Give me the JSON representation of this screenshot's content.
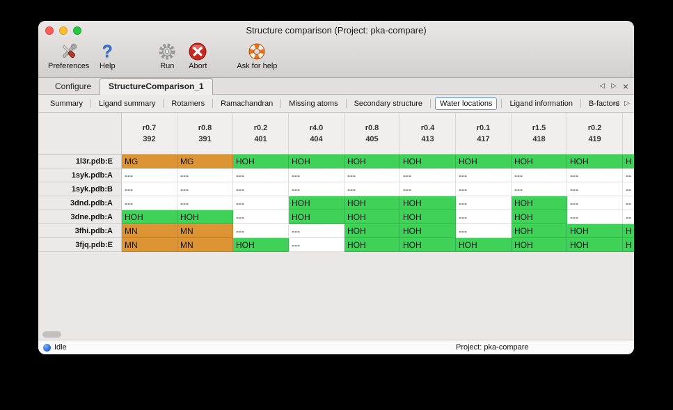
{
  "window": {
    "title": "Structure comparison (Project: pka-compare)"
  },
  "toolbar": {
    "items": [
      {
        "label": "Preferences",
        "icon": "tools-icon"
      },
      {
        "label": "Help",
        "icon": "question-icon"
      },
      {
        "label": "Run",
        "icon": "gear-icon"
      },
      {
        "label": "Abort",
        "icon": "abort-icon"
      },
      {
        "label": "Ask for help",
        "icon": "lifebuoy-icon"
      }
    ]
  },
  "tabbar": {
    "tabs": [
      {
        "label": "Configure",
        "active": false
      },
      {
        "label": "StructureComparison_1",
        "active": true
      }
    ],
    "controls": {
      "prev": "◁",
      "next": "▷",
      "close": "×"
    }
  },
  "subtabs": {
    "selected": "Water locations",
    "items": [
      "Summary",
      "Ligand summary",
      "Rotamers",
      "Ramachandran",
      "Missing atoms",
      "Secondary structure",
      "Water locations",
      "Ligand information",
      "B-factors"
    ],
    "controls": {
      "prev": "◁",
      "next": "▷"
    }
  },
  "table": {
    "cell_colors": {
      "water": "#3fd158",
      "metal": "#dd9434",
      "none": "#ffffff"
    },
    "columns": [
      [
        "r0.7",
        "392"
      ],
      [
        "r0.8",
        "391"
      ],
      [
        "r0.2",
        "401"
      ],
      [
        "r4.0",
        "404"
      ],
      [
        "r0.8",
        "405"
      ],
      [
        "r0.4",
        "413"
      ],
      [
        "r0.1",
        "417"
      ],
      [
        "r1.5",
        "418"
      ],
      [
        "r0.2",
        "419"
      ]
    ],
    "rows": [
      {
        "label": "1l3r.pdb:E",
        "cells": [
          [
            "MG",
            "metal"
          ],
          [
            "MG",
            "metal"
          ],
          [
            "HOH",
            "water"
          ],
          [
            "HOH",
            "water"
          ],
          [
            "HOH",
            "water"
          ],
          [
            "HOH",
            "water"
          ],
          [
            "HOH",
            "water"
          ],
          [
            "HOH",
            "water"
          ],
          [
            "HOH",
            "water"
          ]
        ],
        "partial": [
          "H",
          "water"
        ]
      },
      {
        "label": "1syk.pdb:A",
        "cells": [
          [
            "---",
            "none"
          ],
          [
            "---",
            "none"
          ],
          [
            "---",
            "none"
          ],
          [
            "---",
            "none"
          ],
          [
            "---",
            "none"
          ],
          [
            "---",
            "none"
          ],
          [
            "---",
            "none"
          ],
          [
            "---",
            "none"
          ],
          [
            "---",
            "none"
          ]
        ],
        "partial": [
          "--",
          "none"
        ]
      },
      {
        "label": "1syk.pdb:B",
        "cells": [
          [
            "---",
            "none"
          ],
          [
            "---",
            "none"
          ],
          [
            "---",
            "none"
          ],
          [
            "---",
            "none"
          ],
          [
            "---",
            "none"
          ],
          [
            "---",
            "none"
          ],
          [
            "---",
            "none"
          ],
          [
            "---",
            "none"
          ],
          [
            "---",
            "none"
          ]
        ],
        "partial": [
          "--",
          "none"
        ]
      },
      {
        "label": "3dnd.pdb:A",
        "cells": [
          [
            "---",
            "none"
          ],
          [
            "---",
            "none"
          ],
          [
            "---",
            "none"
          ],
          [
            "HOH",
            "water"
          ],
          [
            "HOH",
            "water"
          ],
          [
            "HOH",
            "water"
          ],
          [
            "---",
            "none"
          ],
          [
            "HOH",
            "water"
          ],
          [
            "---",
            "none"
          ]
        ],
        "partial": [
          "--",
          "none"
        ]
      },
      {
        "label": "3dne.pdb:A",
        "cells": [
          [
            "HOH",
            "water"
          ],
          [
            "HOH",
            "water"
          ],
          [
            "---",
            "none"
          ],
          [
            "HOH",
            "water"
          ],
          [
            "HOH",
            "water"
          ],
          [
            "HOH",
            "water"
          ],
          [
            "---",
            "none"
          ],
          [
            "HOH",
            "water"
          ],
          [
            "---",
            "none"
          ]
        ],
        "partial": [
          "--",
          "none"
        ]
      },
      {
        "label": "3fhi.pdb:A",
        "cells": [
          [
            "MN",
            "metal"
          ],
          [
            "MN",
            "metal"
          ],
          [
            "---",
            "none"
          ],
          [
            "---",
            "none"
          ],
          [
            "HOH",
            "water"
          ],
          [
            "HOH",
            "water"
          ],
          [
            "---",
            "none"
          ],
          [
            "HOH",
            "water"
          ],
          [
            "HOH",
            "water"
          ]
        ],
        "partial": [
          "H",
          "water"
        ]
      },
      {
        "label": "3fjq.pdb:E",
        "cells": [
          [
            "MN",
            "metal"
          ],
          [
            "MN",
            "metal"
          ],
          [
            "HOH",
            "water"
          ],
          [
            "---",
            "none"
          ],
          [
            "HOH",
            "water"
          ],
          [
            "HOH",
            "water"
          ],
          [
            "HOH",
            "water"
          ],
          [
            "HOH",
            "water"
          ],
          [
            "HOH",
            "water"
          ]
        ],
        "partial": [
          "H",
          "water"
        ]
      }
    ]
  },
  "statusbar": {
    "status": "Idle",
    "project": "Project: pka-compare"
  }
}
